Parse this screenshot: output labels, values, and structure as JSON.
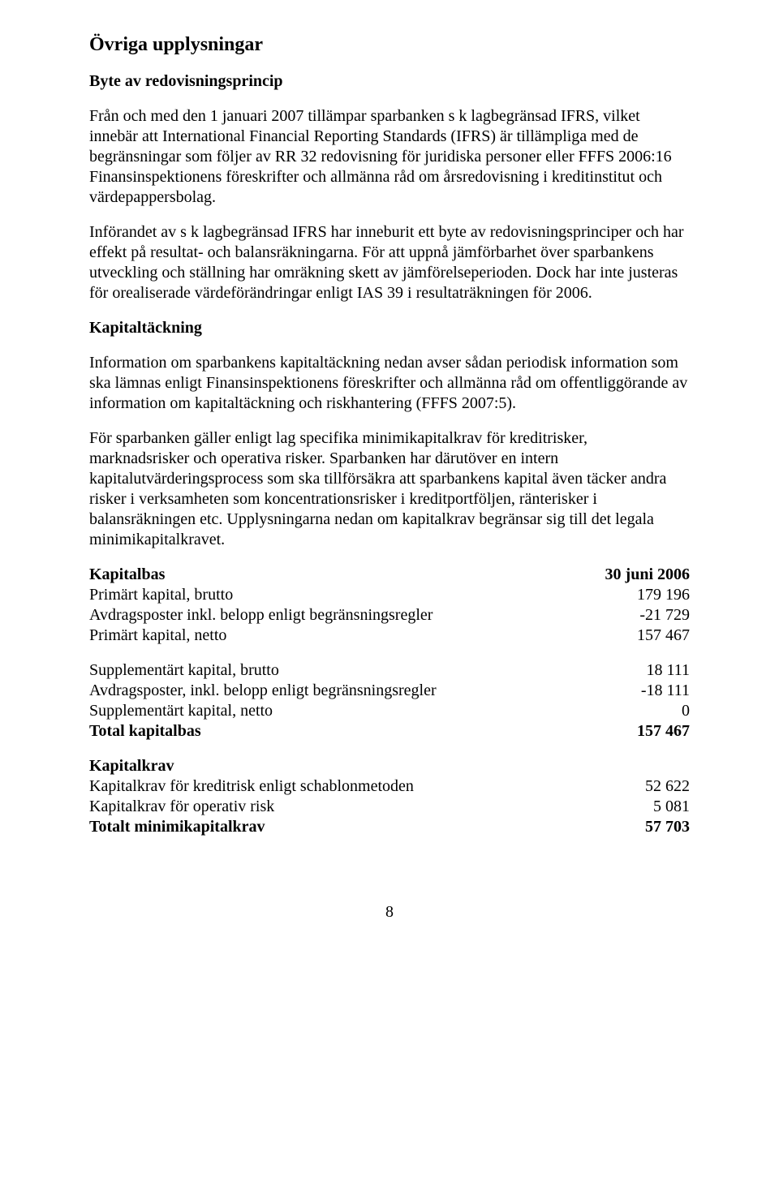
{
  "heading_main": "Övriga upplysningar",
  "section_byte": {
    "title": "Byte av redovisningsprincip",
    "p1": "Från och med den 1 januari 2007 tillämpar sparbanken s k lagbegränsad IFRS, vilket innebär att International Financial Reporting Standards (IFRS) är tillämpliga med de begränsningar som följer av RR 32 redovisning för juridiska personer eller FFFS 2006:16 Finansinspektionens föreskrifter och allmänna råd om årsredovisning i kreditinstitut och värdepappersbolag.",
    "p2": "Införandet av s k lagbegränsad IFRS har inneburit ett byte av redovisningsprinciper och har effekt på resultat- och balansräkningarna. För att uppnå jämförbarhet över sparbankens utveckling och ställning har omräkning skett av jämförelseperioden. Dock har inte justeras för orealiserade värdeförändringar enligt IAS 39 i resultaträkningen för 2006."
  },
  "section_kapital": {
    "title": "Kapitaltäckning",
    "p1": "Information om sparbankens kapitaltäckning nedan avser sådan periodisk information som ska lämnas enligt Finansinspektionens föreskrifter och allmänna råd om offentliggörande av information om kapitaltäckning och riskhantering (FFFS 2007:5).",
    "p2": "För sparbanken gäller enligt lag specifika minimikapitalkrav för kreditrisker, marknadsrisker och operativa risker. Sparbanken har därutöver en intern kapitalutvärderingsprocess som ska tillförsäkra att sparbankens kapital även täcker andra risker i verksamheten som koncentrationsrisker i kreditportföljen, ränterisker i balansräkningen etc. Upplysningarna nedan om kapitalkrav begränsar sig till det legala minimikapitalkravet."
  },
  "kapitalbas": {
    "header_label": "Kapitalbas",
    "header_value": "30 juni 2006",
    "rows": [
      {
        "label": "Primärt kapital, brutto",
        "value": "179 196"
      },
      {
        "label": "Avdragsposter inkl. belopp enligt begränsningsregler",
        "value": "-21 729"
      },
      {
        "label": "Primärt kapital, netto",
        "value": "157 467"
      }
    ]
  },
  "supplement": {
    "rows": [
      {
        "label": "Supplementärt kapital, brutto",
        "value": "18 111"
      },
      {
        "label": "Avdragsposter, inkl. belopp enligt begränsningsregler",
        "value": "-18 111"
      },
      {
        "label": "Supplementärt kapital, netto",
        "value": "0"
      }
    ],
    "total_label": "Total kapitalbas",
    "total_value": "157 467"
  },
  "kapitalkrav": {
    "header": "Kapitalkrav",
    "rows": [
      {
        "label": "Kapitalkrav för kreditrisk enligt schablonmetoden",
        "value": "52 622"
      },
      {
        "label": "Kapitalkrav för operativ risk",
        "value": "5 081"
      }
    ],
    "total_label": "Totalt minimikapitalkrav",
    "total_value": "57 703"
  },
  "page_number": "8"
}
